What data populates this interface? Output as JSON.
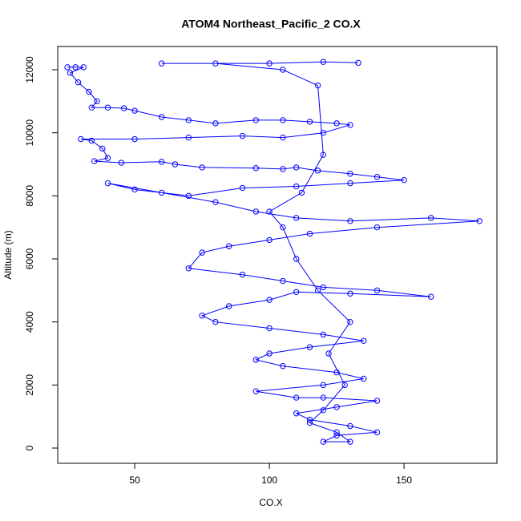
{
  "chart_data": {
    "type": "line",
    "title": "ATOM4 Northeast_Pacific_2 CO.X",
    "xlabel": "CO.X",
    "ylabel": "Altitude (m)",
    "color": "#0000ff",
    "markers": true,
    "x": [
      25,
      28,
      31,
      26,
      29,
      33,
      36,
      34,
      40,
      46,
      50,
      60,
      70,
      80,
      95,
      105,
      115,
      125,
      130,
      120,
      105,
      90,
      70,
      50,
      30,
      34,
      38,
      40,
      35,
      45,
      60,
      65,
      75,
      95,
      105,
      110,
      118,
      130,
      140,
      150,
      130,
      110,
      90,
      70,
      50,
      40,
      60,
      80,
      95,
      110,
      130,
      160,
      178,
      140,
      115,
      100,
      85,
      75,
      70,
      90,
      105,
      120,
      140,
      160,
      130,
      110,
      100,
      85,
      75,
      80,
      100,
      120,
      135,
      115,
      100,
      95,
      105,
      125,
      135,
      120,
      95,
      110,
      120,
      140,
      125,
      110,
      115,
      130,
      140,
      125,
      120,
      130,
      125,
      115,
      120,
      128,
      122,
      130,
      118,
      110,
      105,
      100,
      112,
      120,
      118,
      105,
      80,
      60,
      100,
      120,
      133
    ],
    "values": [
      12080,
      12080,
      12080,
      11900,
      11600,
      11300,
      11000,
      10800,
      10800,
      10780,
      10700,
      10500,
      10400,
      10300,
      10400,
      10400,
      10350,
      10300,
      10250,
      10000,
      9850,
      9900,
      9850,
      9800,
      9800,
      9750,
      9500,
      9200,
      9100,
      9050,
      9080,
      9000,
      8900,
      8880,
      8850,
      8900,
      8800,
      8700,
      8600,
      8500,
      8400,
      8300,
      8250,
      8000,
      8200,
      8400,
      8100,
      7800,
      7500,
      7300,
      7200,
      7300,
      7200,
      7000,
      6800,
      6600,
      6400,
      6200,
      5700,
      5500,
      5300,
      5100,
      5000,
      4800,
      4900,
      4950,
      4700,
      4500,
      4200,
      4000,
      3800,
      3600,
      3400,
      3200,
      3000,
      2800,
      2600,
      2400,
      2200,
      2000,
      1800,
      1600,
      1600,
      1500,
      1300,
      1100,
      900,
      700,
      500,
      400,
      200,
      200,
      500,
      800,
      1200,
      2000,
      3000,
      4000,
      5000,
      6000,
      7000,
      7500,
      8100,
      9300,
      11500,
      12000,
      12200,
      12200,
      12200,
      12250,
      12220
    ],
    "xlim": [
      21.4,
      184.5
    ],
    "xticks": [
      50,
      100,
      150
    ],
    "ylim": [
      -483,
      12737
    ],
    "yticks": [
      0,
      2000,
      4000,
      6000,
      8000,
      10000,
      12000
    ]
  }
}
